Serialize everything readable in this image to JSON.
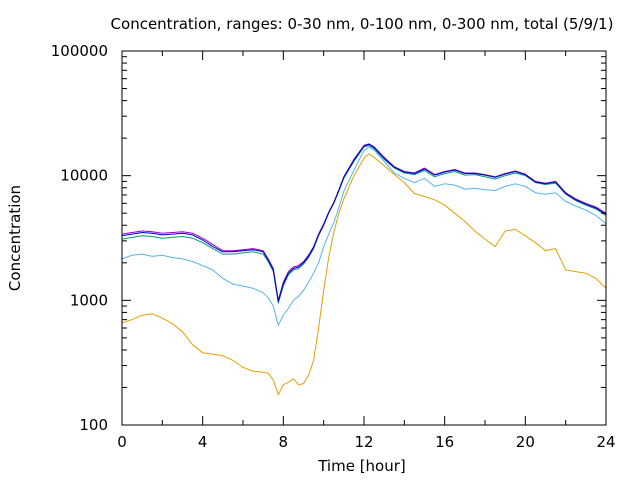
{
  "chart_data": {
    "type": "line",
    "title": "Concentration, ranges: 0-30 nm, 0-100 nm, 0-300 nm, total (5/9/1)",
    "xlabel": "Time [hour]",
    "ylabel": "Concentration",
    "xlim": [
      0,
      24
    ],
    "ylim": [
      100,
      100000
    ],
    "yscale": "log",
    "xticks": [
      "0",
      "4",
      "8",
      "12",
      "16",
      "20",
      "24"
    ],
    "yticks": [
      "100",
      "1000",
      "10000",
      "100000"
    ],
    "grid": false,
    "legend": false,
    "colors": [
      "#e69f00",
      "#56b4e9",
      "#009e73",
      "#9400d3",
      "#0000cd"
    ],
    "series": [
      {
        "color": "#e69f00",
        "x": [
          0,
          0.5,
          1,
          1.5,
          2,
          2.5,
          3,
          3.5,
          4,
          4.5,
          5,
          5.5,
          6,
          6.5,
          7,
          7.25,
          7.5,
          7.75,
          8,
          8.25,
          8.5,
          8.75,
          9,
          9.25,
          9.5,
          9.75,
          10,
          10.25,
          10.5,
          10.75,
          11,
          11.5,
          12,
          12.25,
          12.5,
          13,
          13.5,
          14,
          14.5,
          15,
          15.5,
          16,
          16.5,
          17,
          17.5,
          18,
          18.5,
          19,
          19.5,
          20,
          20.5,
          21,
          21.5,
          22,
          22.5,
          23,
          23.5,
          24
        ],
        "y": [
          660,
          700,
          760,
          780,
          720,
          650,
          560,
          440,
          380,
          370,
          360,
          330,
          290,
          270,
          265,
          260,
          230,
          175,
          210,
          220,
          235,
          210,
          215,
          250,
          330,
          600,
          1200,
          2200,
          3500,
          5000,
          6500,
          10000,
          13800,
          15000,
          14000,
          12000,
          10200,
          8800,
          7200,
          6800,
          6400,
          5800,
          5000,
          4300,
          3600,
          3100,
          2700,
          3600,
          3700,
          3300,
          2900,
          2500,
          2600,
          1750,
          1700,
          1650,
          1500,
          1250
        ]
      },
      {
        "color": "#56b4e9",
        "x": [
          0,
          0.5,
          1,
          1.5,
          2,
          2.5,
          3,
          3.5,
          4,
          4.5,
          5,
          5.5,
          6,
          6.5,
          7,
          7.25,
          7.5,
          7.75,
          8,
          8.25,
          8.5,
          8.75,
          9,
          9.25,
          9.5,
          9.75,
          10,
          10.25,
          10.5,
          10.75,
          11,
          11.5,
          12,
          12.25,
          12.5,
          13,
          13.5,
          14,
          14.5,
          15,
          15.5,
          16,
          16.5,
          17,
          17.5,
          18,
          18.5,
          19,
          19.5,
          20,
          20.5,
          21,
          21.5,
          22,
          22.5,
          23,
          23.5,
          24
        ],
        "y": [
          2150,
          2300,
          2350,
          2250,
          2300,
          2200,
          2150,
          2050,
          1900,
          1750,
          1500,
          1350,
          1300,
          1250,
          1150,
          1050,
          900,
          630,
          760,
          860,
          1000,
          1080,
          1200,
          1400,
          1650,
          2000,
          2700,
          3400,
          4200,
          5500,
          7500,
          11000,
          16000,
          17000,
          16000,
          13000,
          10500,
          9500,
          8800,
          9500,
          8200,
          8600,
          8400,
          7800,
          7900,
          7700,
          7600,
          8200,
          8600,
          8200,
          7300,
          7100,
          7300,
          6200,
          5700,
          5300,
          4800,
          4100
        ]
      },
      {
        "color": "#009e73",
        "x": [
          0,
          0.5,
          1,
          1.5,
          2,
          2.5,
          3,
          3.5,
          4,
          4.5,
          5,
          5.5,
          6,
          6.5,
          7,
          7.25,
          7.5,
          7.75,
          8,
          8.25,
          8.5,
          8.75,
          9,
          9.25,
          9.5,
          9.75,
          10,
          10.25,
          10.5,
          10.75,
          11,
          11.5,
          12,
          12.25,
          12.5,
          13,
          13.5,
          14,
          14.5,
          15,
          15.5,
          16,
          16.5,
          17,
          17.5,
          18,
          18.5,
          19,
          19.5,
          20,
          20.5,
          21,
          21.5,
          22,
          22.5,
          23,
          23.5,
          24
        ],
        "y": [
          3100,
          3200,
          3300,
          3250,
          3150,
          3200,
          3250,
          3150,
          2900,
          2600,
          2350,
          2350,
          2400,
          2450,
          2350,
          2050,
          1700,
          950,
          1300,
          1600,
          1750,
          1800,
          1950,
          2200,
          2600,
          3300,
          4000,
          5000,
          6000,
          7500,
          9500,
          13000,
          17000,
          17500,
          16500,
          13500,
          11500,
          10500,
          10200,
          11000,
          9800,
          10400,
          10800,
          10100,
          10200,
          9800,
          9400,
          10000,
          10500,
          10000,
          8800,
          8500,
          8700,
          7100,
          6300,
          5800,
          5400,
          4800
        ]
      },
      {
        "color": "#9400d3",
        "x": [
          0,
          0.5,
          1,
          1.5,
          2,
          2.5,
          3,
          3.5,
          4,
          4.5,
          5,
          5.5,
          6,
          6.5,
          7,
          7.25,
          7.5,
          7.75,
          8,
          8.25,
          8.5,
          8.75,
          9,
          9.25,
          9.5,
          9.75,
          10,
          10.25,
          10.5,
          10.75,
          11,
          11.5,
          12,
          12.25,
          12.5,
          13,
          13.5,
          14,
          14.5,
          15,
          15.5,
          16,
          16.5,
          17,
          17.5,
          18,
          18.5,
          19,
          19.5,
          20,
          20.5,
          21,
          21.5,
          22,
          22.5,
          23,
          23.5,
          24
        ],
        "y": [
          3400,
          3500,
          3600,
          3550,
          3450,
          3500,
          3550,
          3450,
          3150,
          2800,
          2500,
          2500,
          2550,
          2600,
          2500,
          2150,
          1800,
          1000,
          1400,
          1700,
          1850,
          1900,
          2050,
          2300,
          2700,
          3400,
          4100,
          5100,
          6100,
          7700,
          9800,
          13500,
          17500,
          18000,
          17000,
          14000,
          11800,
          10800,
          10500,
          11500,
          10200,
          10800,
          11200,
          10500,
          10500,
          10200,
          9800,
          10400,
          10900,
          10300,
          9000,
          8700,
          9000,
          7300,
          6500,
          6000,
          5600,
          5000
        ]
      },
      {
        "color": "#0000cd",
        "x": [
          0,
          0.5,
          1,
          1.5,
          2,
          2.5,
          3,
          3.5,
          4,
          4.5,
          5,
          5.5,
          6,
          6.5,
          7,
          7.25,
          7.5,
          7.75,
          8,
          8.25,
          8.5,
          8.75,
          9,
          9.25,
          9.5,
          9.75,
          10,
          10.25,
          10.5,
          10.75,
          11,
          11.5,
          12,
          12.25,
          12.5,
          13,
          13.5,
          14,
          14.5,
          15,
          15.5,
          16,
          16.5,
          17,
          17.5,
          18,
          18.5,
          19,
          19.5,
          20,
          20.5,
          21,
          21.5,
          22,
          22.5,
          23,
          23.5,
          24
        ],
        "y": [
          3300,
          3400,
          3500,
          3450,
          3350,
          3400,
          3450,
          3350,
          3050,
          2700,
          2450,
          2450,
          2500,
          2550,
          2450,
          2100,
          1750,
          980,
          1350,
          1650,
          1800,
          1850,
          2000,
          2250,
          2650,
          3350,
          4050,
          5050,
          6050,
          7600,
          9700,
          13300,
          17300,
          17800,
          16800,
          13800,
          11700,
          10700,
          10400,
          11300,
          10100,
          10700,
          11100,
          10400,
          10400,
          10100,
          9700,
          10300,
          10800,
          10200,
          8900,
          8600,
          8900,
          7200,
          6400,
          5900,
          5500,
          4900
        ]
      }
    ]
  }
}
